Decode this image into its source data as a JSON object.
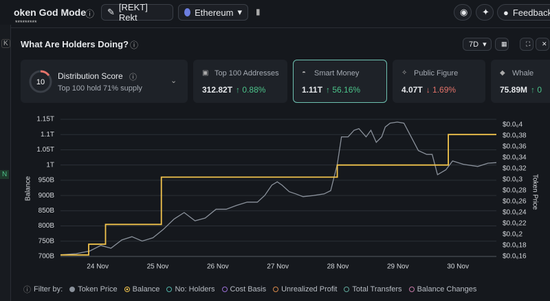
{
  "header": {
    "title": "oken God Mode",
    "masked": "*********",
    "token_button": "[REKT] Rekt",
    "chain": "Ethereum",
    "feedback": "Feedback"
  },
  "sidebar": {
    "key": "K",
    "tag": "N"
  },
  "section": {
    "title": "What Are Holders Doing?",
    "period": "7D"
  },
  "cards": [
    {
      "title": "Distribution Score",
      "score": "10",
      "subtitle": "Top 100 hold 71% supply"
    },
    {
      "title": "Top 100 Addresses",
      "value": "312.82T",
      "change": "0.88%",
      "direction": "up"
    },
    {
      "title": "Smart Money",
      "value": "1.11T",
      "change": "56.16%",
      "direction": "up",
      "selected": true
    },
    {
      "title": "Public Figure",
      "value": "4.07T",
      "change": "1.69%",
      "direction": "down"
    },
    {
      "title": "Whale",
      "value": "75.89M",
      "change": "0",
      "direction": "up"
    }
  ],
  "chart_data": {
    "type": "line",
    "ylabel": "Balance",
    "y2label": "Token Price",
    "grid": true,
    "xlim": [
      23.38,
      30.64
    ],
    "xticks": [
      {
        "value": 24,
        "label": "24 Nov"
      },
      {
        "value": 25,
        "label": "25 Nov"
      },
      {
        "value": 26,
        "label": "26 Nov"
      },
      {
        "value": 27,
        "label": "27 Nov"
      },
      {
        "value": 28,
        "label": "28 Nov"
      },
      {
        "value": 29,
        "label": "29 Nov"
      },
      {
        "value": 30,
        "label": "30 Nov"
      }
    ],
    "ylim": [
      700000000000,
      1150000000000
    ],
    "yticks": [
      {
        "value": 700000000000,
        "label": "700B"
      },
      {
        "value": 750000000000,
        "label": "750B"
      },
      {
        "value": 800000000000,
        "label": "800B"
      },
      {
        "value": 850000000000,
        "label": "850B"
      },
      {
        "value": 900000000000,
        "label": "900B"
      },
      {
        "value": 950000000000,
        "label": "950B"
      },
      {
        "value": 1000000000000,
        "label": "1T"
      },
      {
        "value": 1050000000000,
        "label": "1.05T"
      },
      {
        "value": 1100000000000,
        "label": "1.1T"
      },
      {
        "value": 1150000000000,
        "label": "1.15T"
      }
    ],
    "y2lim": [
      1.6e-07,
      4.1e-07
    ],
    "y2ticks": [
      {
        "value": 1.6e-07,
        "label": "$0.0₆16"
      },
      {
        "value": 1.8e-07,
        "label": "$0.0₆18"
      },
      {
        "value": 2e-07,
        "label": "$0.0₆2"
      },
      {
        "value": 2.2e-07,
        "label": "$0.0₆22"
      },
      {
        "value": 2.4e-07,
        "label": "$0.0₆24"
      },
      {
        "value": 2.6e-07,
        "label": "$0.0₆26"
      },
      {
        "value": 2.8e-07,
        "label": "$0.0₆28"
      },
      {
        "value": 3e-07,
        "label": "$0.0₆3"
      },
      {
        "value": 3.2e-07,
        "label": "$0.0₆32"
      },
      {
        "value": 3.4e-07,
        "label": "$0.0₆34"
      },
      {
        "value": 3.6e-07,
        "label": "$0.0₆36"
      },
      {
        "value": 3.8e-07,
        "label": "$0.0₆38"
      },
      {
        "value": 4e-07,
        "label": "$0.0₆4"
      }
    ],
    "series": [
      {
        "name": "Token Price",
        "color": "#8a919b",
        "axis": "y2",
        "x": [
          23.38,
          23.64,
          23.87,
          24.05,
          24.22,
          24.4,
          24.57,
          24.74,
          24.92,
          25.09,
          25.27,
          25.44,
          25.62,
          25.79,
          25.97,
          26.14,
          26.31,
          26.49,
          26.66,
          26.78,
          26.9,
          26.99,
          27.07,
          27.19,
          27.3,
          27.42,
          27.59,
          27.77,
          27.88,
          27.99,
          28.06,
          28.17,
          28.27,
          28.35,
          28.47,
          28.55,
          28.64,
          28.73,
          28.79,
          28.87,
          28.99,
          29.1,
          29.22,
          29.34,
          29.48,
          29.57,
          29.66,
          29.8,
          29.91,
          30.09,
          30.33,
          30.5,
          30.64
        ],
        "values": [
          1.63e-07,
          1.65e-07,
          1.7e-07,
          1.8e-07,
          1.75e-07,
          1.9e-07,
          1.96e-07,
          1.88e-07,
          1.94e-07,
          2.09e-07,
          2.28e-07,
          2.4e-07,
          2.25e-07,
          2.3e-07,
          2.46e-07,
          2.46e-07,
          2.53e-07,
          2.59e-07,
          2.59e-07,
          2.71e-07,
          2.9e-07,
          2.96e-07,
          2.9e-07,
          2.78e-07,
          2.74e-07,
          2.69e-07,
          2.71e-07,
          2.74e-07,
          2.8e-07,
          3.28e-07,
          3.78e-07,
          3.78e-07,
          3.9e-07,
          3.93e-07,
          3.78e-07,
          3.9e-07,
          3.68e-07,
          3.78e-07,
          3.96e-07,
          4.03e-07,
          4.05e-07,
          4.03e-07,
          3.78e-07,
          3.53e-07,
          3.46e-07,
          3.46e-07,
          3.09e-07,
          3.18e-07,
          3.34e-07,
          3.28e-07,
          3.24e-07,
          3.3e-07,
          3.31e-07
        ]
      },
      {
        "name": "Balance",
        "color": "#f2c44d",
        "x": [
          23.38,
          23.85,
          23.85,
          24.13,
          24.13,
          25.06,
          25.06,
          27.99,
          27.99,
          29.84,
          29.84,
          30.64
        ],
        "values": [
          705000000000,
          705000000000,
          740000000000,
          740000000000,
          805000000000,
          805000000000,
          960000000000,
          960000000000,
          1000000000000,
          1000000000000,
          1100000000000,
          1100000000000
        ]
      }
    ]
  },
  "filter": {
    "label": "Filter by:",
    "token_color": "#8a919b",
    "balance_color": "#f2c44d",
    "items": [
      {
        "label": "No: Holders",
        "color": "#4fb3a8"
      },
      {
        "label": "Cost Basis",
        "color": "#9b6fd6"
      },
      {
        "label": "Unrealized Profit",
        "color": "#d8894a"
      },
      {
        "label": "Total Transfers",
        "color": "#5fa89a"
      },
      {
        "label": "Balance Changes",
        "color": "#c77aa8"
      }
    ]
  }
}
